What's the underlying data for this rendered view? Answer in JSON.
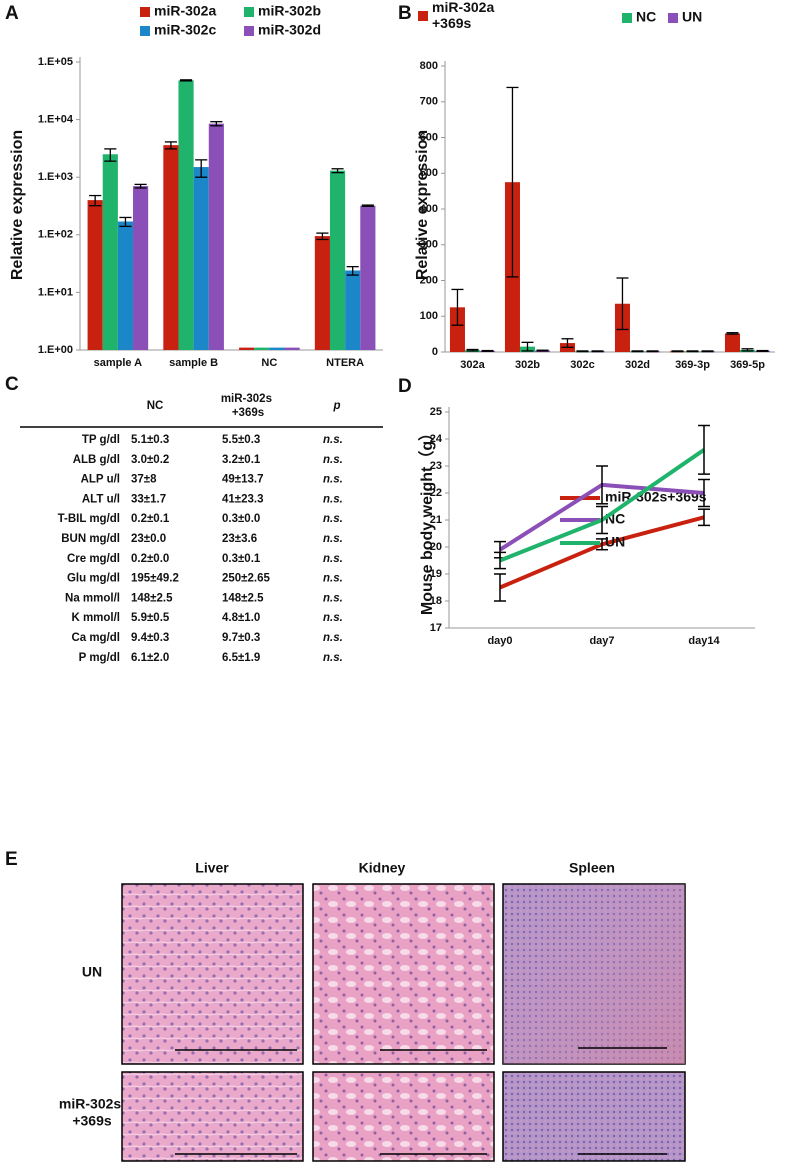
{
  "chart_data": [
    {
      "panel": "A",
      "type": "bar",
      "log_scale": true,
      "categories": [
        "sample A",
        "sample B",
        "NC",
        "NTERA"
      ],
      "series": [
        {
          "name": "miR-302a",
          "color": "#c9210f",
          "values": [
            400,
            3600,
            1.1,
            95
          ],
          "errors": [
            80,
            500,
            null,
            12
          ]
        },
        {
          "name": "miR-302b",
          "color": "#1fb36b",
          "values": [
            2500,
            48000,
            1.1,
            1300
          ],
          "errors": [
            600,
            1000,
            null,
            100
          ]
        },
        {
          "name": "miR-302c",
          "color": "#1b86c8",
          "values": [
            170,
            1500,
            1.1,
            24
          ],
          "errors": [
            30,
            500,
            null,
            4
          ]
        },
        {
          "name": "miR-302d",
          "color": "#8b4fb8",
          "values": [
            700,
            8500,
            1.1,
            320
          ],
          "errors": [
            50,
            700,
            null,
            8
          ]
        }
      ],
      "y_label": "Relative expression",
      "ylim": [
        1,
        100000
      ],
      "yticks": [
        {
          "value": 1,
          "label": "1.E+00"
        },
        {
          "value": 10,
          "label": "1.E+01"
        },
        {
          "value": 100,
          "label": "1.E+02"
        },
        {
          "value": 1000,
          "label": "1.E+03"
        },
        {
          "value": 10000,
          "label": "1.E+04"
        },
        {
          "value": 100000,
          "label": "1.E+05"
        }
      ]
    },
    {
      "panel": "B",
      "type": "bar",
      "log_scale": false,
      "categories": [
        "302a",
        "302b",
        "302c",
        "302d",
        "369-3p",
        "369-5p"
      ],
      "series": [
        {
          "name": "miR-302a +369s",
          "color": "#c9210f",
          "values": [
            125,
            475,
            25,
            135,
            2,
            52
          ],
          "errors": [
            50,
            265,
            12,
            72,
            1,
            2
          ]
        },
        {
          "name": "NC",
          "color": "#1fb36b",
          "values": [
            5,
            15,
            2,
            2,
            2,
            6
          ],
          "errors": [
            2,
            12,
            1,
            1,
            1,
            3
          ]
        },
        {
          "name": "UN",
          "color": "#8b4fb8",
          "values": [
            3,
            4,
            2,
            2,
            2,
            3
          ],
          "errors": [
            1,
            1,
            1,
            1,
            1,
            1
          ]
        }
      ],
      "y_label": "Relative expression",
      "ylim": [
        0,
        800
      ],
      "yticks": [
        0,
        100,
        200,
        300,
        400,
        500,
        600,
        700,
        800
      ]
    },
    {
      "panel": "D",
      "type": "line",
      "categories": [
        "day0",
        "day7",
        "day14"
      ],
      "series": [
        {
          "name": "miR-302s+369s",
          "color": "#c9210f",
          "values": [
            18.5,
            20.1,
            21.1
          ],
          "errors": [
            0.5,
            0.2,
            0.3
          ]
        },
        {
          "name": "NC",
          "color": "#8b4fb8",
          "values": [
            19.9,
            22.3,
            22.0
          ],
          "errors": [
            0.3,
            0.7,
            0.5
          ]
        },
        {
          "name": "UN",
          "color": "#1fb36b",
          "values": [
            19.5,
            21.0,
            23.6
          ],
          "errors": [
            0.3,
            0.5,
            0.9
          ]
        }
      ],
      "y_label": "Mouse body weight（g）",
      "ylim": [
        17,
        25
      ],
      "yticks": [
        17,
        18,
        19,
        20,
        21,
        22,
        23,
        24,
        25
      ]
    }
  ],
  "table": {
    "panel": "C",
    "header": [
      "NC",
      "miR-302s +369s",
      "p"
    ],
    "rows": [
      [
        "TP g/dl",
        "5.1±0.3",
        "5.5±0.3",
        "n.s."
      ],
      [
        "ALB g/dl",
        "3.0±0.2",
        "3.2±0.1",
        "n.s."
      ],
      [
        "ALP u/l",
        "37±8",
        "49±13.7",
        "n.s."
      ],
      [
        "ALT u/l",
        "33±1.7",
        "41±23.3",
        "n.s."
      ],
      [
        "T-BIL mg/dl",
        "0.2±0.1",
        "0.3±0.0",
        "n.s."
      ],
      [
        "BUN mg/dl",
        "23±0.0",
        "23±3.6",
        "n.s."
      ],
      [
        "Cre mg/dl",
        "0.2±0.0",
        "0.3±0.1",
        "n.s."
      ],
      [
        "Glu mg/dl",
        "195±49.2",
        "250±2.65",
        "n.s."
      ],
      [
        "Na mmol/l",
        "148±2.5",
        "148±2.5",
        "n.s."
      ],
      [
        "K mmol/l",
        "5.9±0.5",
        "4.8±1.0",
        "n.s."
      ],
      [
        "Ca mg/dl",
        "9.4±0.3",
        "9.7±0.3",
        "n.s."
      ],
      [
        "P mg/dl",
        "6.1±2.0",
        "6.5±1.9",
        "n.s."
      ]
    ]
  },
  "histology": {
    "panel": "E",
    "columns": [
      "Liver",
      "Kidney",
      "Spleen"
    ],
    "rows": [
      "UN",
      "miR-302s +369s"
    ]
  }
}
